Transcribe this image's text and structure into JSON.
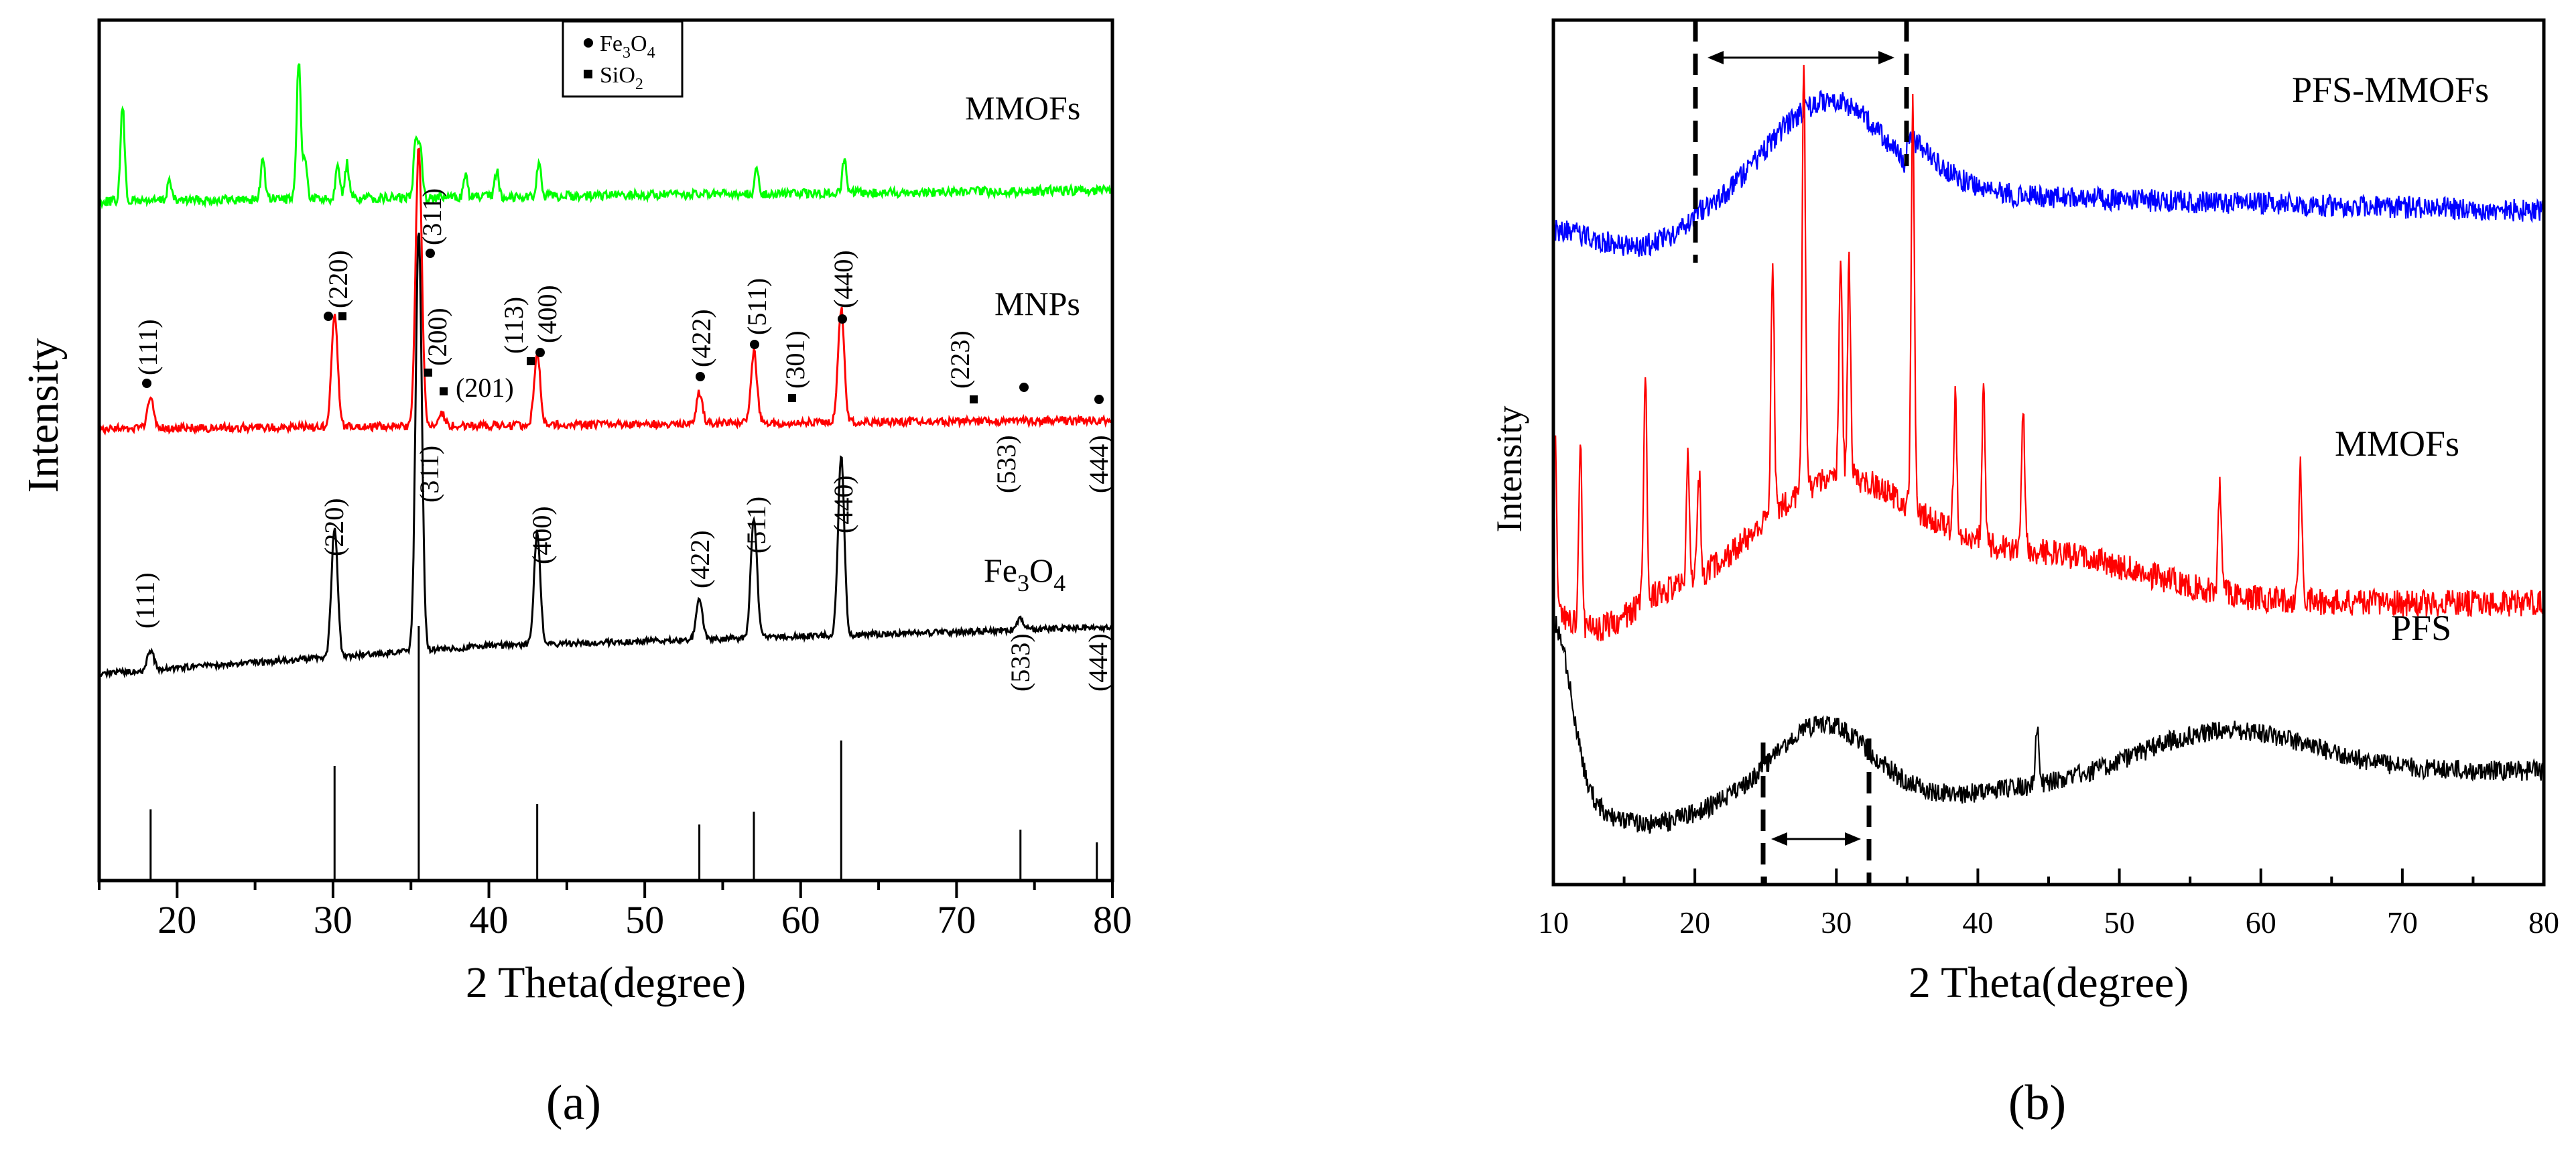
{
  "panels": [
    {
      "id": "a",
      "caption": "(a)",
      "chart_data": {
        "type": "line",
        "title": "",
        "xlabel": "2 Theta(degree)",
        "ylabel": "Intensity",
        "xlim": [
          15,
          80
        ],
        "xticks": [
          20,
          30,
          40,
          50,
          60,
          70,
          80
        ],
        "legend": {
          "placement": "top-center",
          "entries": [
            {
              "symbol": "circle",
              "label": "Fe3O4"
            },
            {
              "symbol": "square",
              "label": "SiO2"
            }
          ]
        },
        "series": [
          {
            "name": "MMOFs",
            "color": "#00ff00",
            "baseline": 0.85,
            "peaks": [
              [
                16.5,
                0.55
              ],
              [
                19.5,
                0.12
              ],
              [
                25.5,
                0.25
              ],
              [
                27.8,
                0.8
              ],
              [
                28.2,
                0.25
              ],
              [
                30.3,
                0.22
              ],
              [
                30.9,
                0.2
              ],
              [
                35.3,
                0.35
              ],
              [
                35.6,
                0.3
              ],
              [
                38.5,
                0.12
              ],
              [
                40.5,
                0.15
              ],
              [
                43.2,
                0.2
              ],
              [
                57.2,
                0.15
              ],
              [
                62.8,
                0.2
              ]
            ]
          },
          {
            "name": "MNPs",
            "color": "#ff0000",
            "baseline": 0.45,
            "peaks": [
              [
                18.3,
                0.12
              ],
              [
                30.1,
                0.45
              ],
              [
                35.5,
                1.1
              ],
              [
                37.0,
                0.05
              ],
              [
                43.1,
                0.28
              ],
              [
                53.5,
                0.12
              ],
              [
                57.0,
                0.28
              ],
              [
                62.6,
                0.45
              ]
            ]
          },
          {
            "name": "Fe3O4",
            "color": "#000000",
            "baseline": 0.0,
            "peaks": [
              [
                18.3,
                0.05
              ],
              [
                30.1,
                0.32
              ],
              [
                35.5,
                1.05
              ],
              [
                43.1,
                0.28
              ],
              [
                53.5,
                0.1
              ],
              [
                57.0,
                0.3
              ],
              [
                62.6,
                0.45
              ],
              [
                74.1,
                0.03
              ]
            ]
          }
        ],
        "reference_lines": [
          [
            18.3,
            0.28
          ],
          [
            30.1,
            0.45
          ],
          [
            35.5,
            1.0
          ],
          [
            43.1,
            0.3
          ],
          [
            53.5,
            0.22
          ],
          [
            57.0,
            0.27
          ],
          [
            62.6,
            0.55
          ],
          [
            74.1,
            0.2
          ],
          [
            79.0,
            0.15
          ]
        ],
        "annotations": {
          "mnps_hkl": [
            "(111)",
            "(220)",
            "(311)",
            "(200)",
            "(201)",
            "(113)",
            "(400)",
            "(422)",
            "(511)",
            "(301)",
            "(440)",
            "(223)",
            "(533)",
            "(444)"
          ],
          "fe3o4_hkl": [
            "(111)",
            "(220)",
            "(311)",
            "(400)",
            "(422)",
            "(511)",
            "(440)",
            "(533)",
            "(444)"
          ]
        }
      }
    },
    {
      "id": "b",
      "caption": "(b)",
      "chart_data": {
        "type": "line",
        "title": "",
        "xlabel": "2 Theta(degree)",
        "ylabel": "Intensity",
        "xlim": [
          10,
          80
        ],
        "xticks": [
          10,
          20,
          30,
          40,
          50,
          60,
          70,
          80
        ],
        "series": [
          {
            "name": "PFS-MMOFs",
            "color": "#0000ff"
          },
          {
            "name": "MMOFs",
            "color": "#ff0000"
          },
          {
            "name": "PFS",
            "color": "#000000"
          }
        ],
        "marked_ranges": [
          [
            20,
            35
          ],
          [
            25,
            32.5
          ]
        ]
      }
    }
  ],
  "labels": {
    "legend_fe_main": "Fe",
    "legend_fe_sub3": "3",
    "legend_fe_o": "O",
    "legend_fe_sub4": "4",
    "legend_si_main": "SiO",
    "legend_si_sub2": "2",
    "a_mmofs": "MMOFs",
    "a_mnps": "MNPs",
    "a_fe_main": "Fe",
    "a_fe_sub3": "3",
    "a_fe_o": "O",
    "a_fe_sub4": "4",
    "b_pfs_mmofs": "PFS-MMOFs",
    "b_mmofs": "MMOFs",
    "b_pfs": "PFS"
  }
}
